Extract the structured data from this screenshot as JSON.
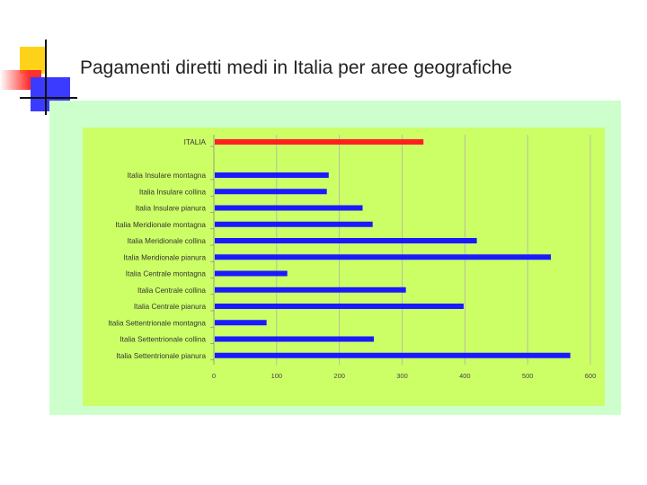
{
  "slide": {
    "title": "Pagamenti diretti medi in Italia per aree geografiche"
  },
  "colors": {
    "outer_background": "#ccffcc",
    "plot_background": "#ccff66",
    "highlight_bar": "#ff2020",
    "bar": "#1a1aff",
    "gridline": "#b0b0b0"
  },
  "chart_data": {
    "type": "bar",
    "orientation": "horizontal",
    "categories": [
      "ITALIA",
      "Italia Insulare montagna",
      "Italia Insulare collina",
      "Italia Insulare pianura",
      "Italia Meridionale montagna",
      "Italia Meridionale collina",
      "Italia Meridionale pianura",
      "Italia Centrale montagna",
      "Italia Centrale collina",
      "Italia Centrale pianura",
      "Italia Settentrionale montagna",
      "Italia Settentrionale collina",
      "Italia Settentrionale pianura"
    ],
    "values": [
      334,
      183,
      180,
      237,
      253,
      419,
      537,
      117,
      306,
      398,
      84,
      255,
      568
    ],
    "highlight_category": "ITALIA",
    "xlim": [
      0,
      600
    ],
    "xticks": [
      0,
      100,
      200,
      300,
      400,
      500,
      600
    ],
    "grid": true,
    "legend": false,
    "title": "",
    "xlabel": "",
    "ylabel": ""
  }
}
